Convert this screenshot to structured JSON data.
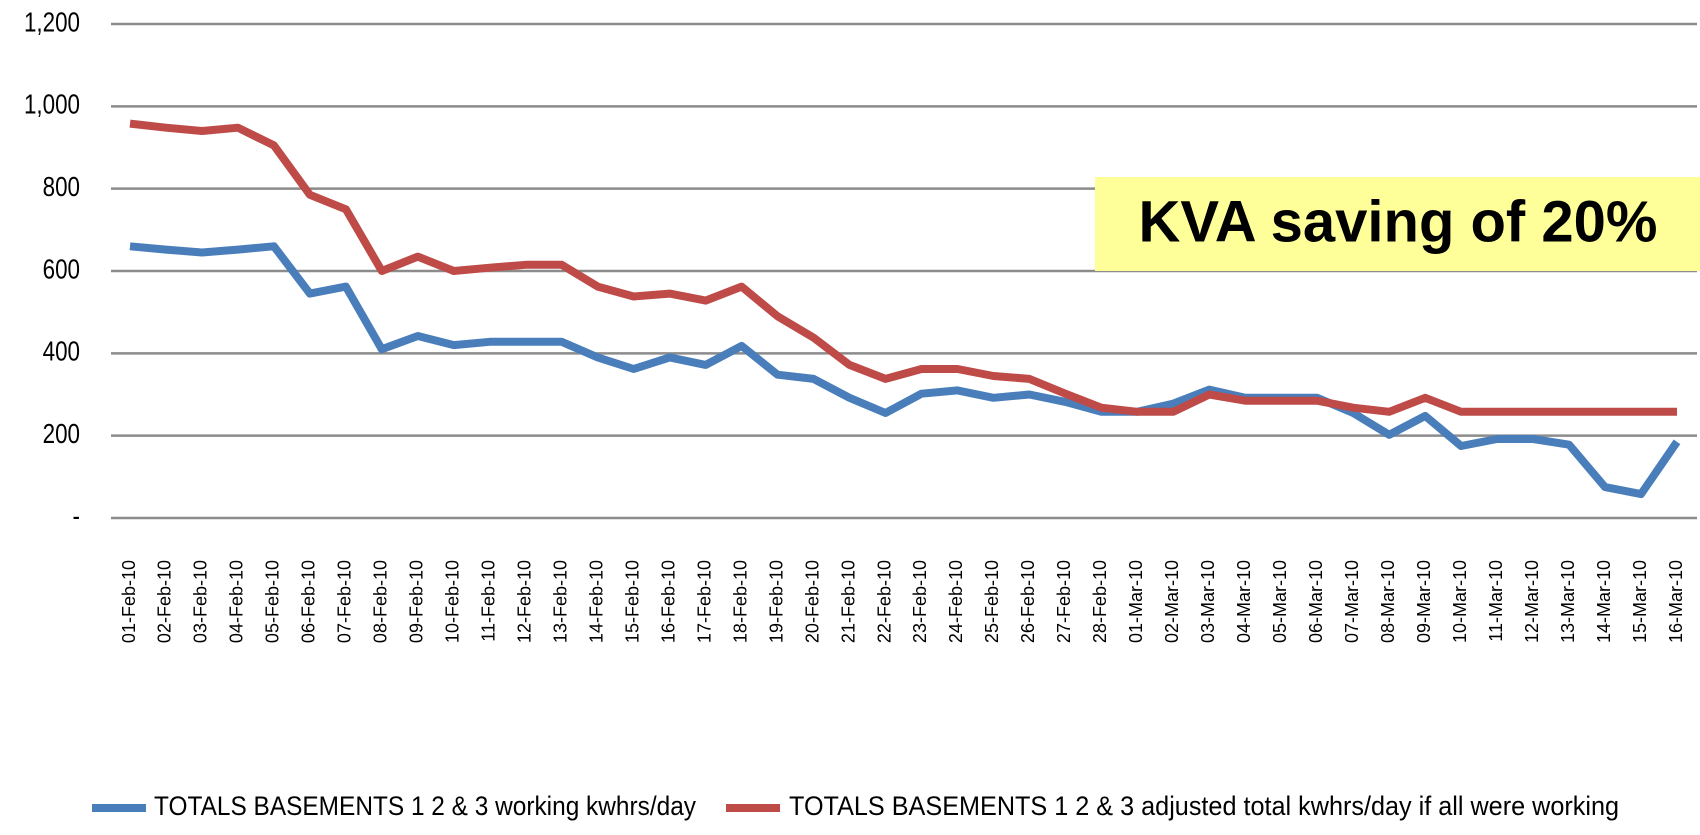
{
  "chart_data": {
    "type": "line",
    "categories": [
      "01-Feb-10",
      "02-Feb-10",
      "03-Feb-10",
      "04-Feb-10",
      "05-Feb-10",
      "06-Feb-10",
      "07-Feb-10",
      "08-Feb-10",
      "09-Feb-10",
      "10-Feb-10",
      "11-Feb-10",
      "12-Feb-10",
      "13-Feb-10",
      "14-Feb-10",
      "15-Feb-10",
      "16-Feb-10",
      "17-Feb-10",
      "18-Feb-10",
      "19-Feb-10",
      "20-Feb-10",
      "21-Feb-10",
      "22-Feb-10",
      "23-Feb-10",
      "24-Feb-10",
      "25-Feb-10",
      "26-Feb-10",
      "27-Feb-10",
      "28-Feb-10",
      "01-Mar-10",
      "02-Mar-10",
      "03-Mar-10",
      "04-Mar-10",
      "05-Mar-10",
      "06-Mar-10",
      "07-Mar-10",
      "08-Mar-10",
      "09-Mar-10",
      "10-Mar-10",
      "11-Mar-10",
      "12-Mar-10",
      "13-Mar-10",
      "14-Mar-10",
      "15-Mar-10",
      "16-Mar-10"
    ],
    "series": [
      {
        "name": "TOTALS BASEMENTS  1 2 & 3 working kwhrs/day",
        "color": "#4a7ebb",
        "values": [
          660,
          652,
          645,
          652,
          660,
          545,
          562,
          410,
          442,
          420,
          428,
          428,
          428,
          390,
          362,
          390,
          372,
          418,
          348,
          338,
          292,
          255,
          302,
          310,
          292,
          300,
          282,
          258,
          258,
          278,
          312,
          292,
          292,
          292,
          255,
          202,
          248,
          175,
          192,
          192,
          178,
          75,
          58,
          185
        ]
      },
      {
        "name": "TOTALS BASEMENTS  1 2 & 3 adjusted  total  kwhrs/day  if all were working",
        "color": "#be4b48",
        "values": [
          958,
          948,
          940,
          948,
          905,
          785,
          750,
          600,
          635,
          600,
          608,
          615,
          615,
          562,
          538,
          545,
          528,
          562,
          490,
          438,
          372,
          338,
          362,
          362,
          345,
          338,
          302,
          268,
          258,
          258,
          300,
          285,
          285,
          285,
          268,
          258,
          292,
          258,
          258,
          258,
          258,
          258,
          258,
          258
        ]
      }
    ],
    "annotation": "KVA saving of 20%",
    "ylim": [
      0,
      1200
    ],
    "yticks": [
      {
        "value": 0,
        "label": "-"
      },
      200,
      400,
      600,
      800,
      {
        "value": 1000,
        "label": "1,000"
      },
      {
        "value": 1200,
        "label": "1,200"
      }
    ],
    "grid": true
  }
}
